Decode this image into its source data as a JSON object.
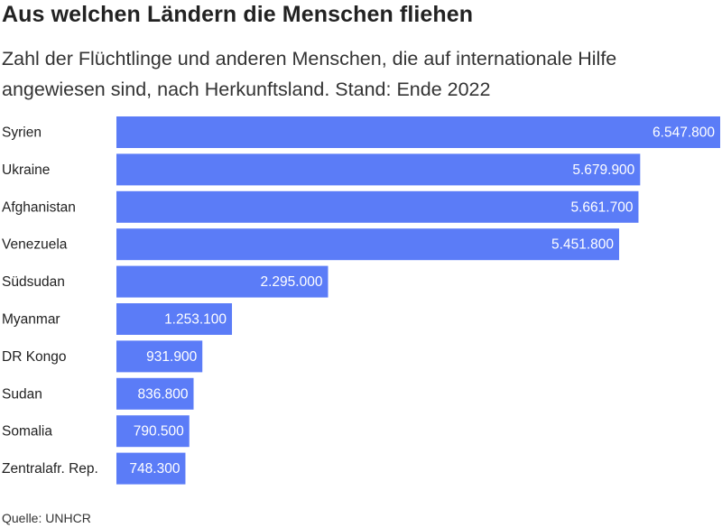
{
  "chart_data": {
    "type": "bar",
    "orientation": "horizontal",
    "title": "Aus welchen Ländern die Menschen fliehen",
    "subtitle": "Zahl der Flüchtlinge und anderen Menschen, die auf internationale Hilfe angewiesen sind, nach Herkunftsland. Stand: Ende 2022",
    "source": "Quelle: UNHCR",
    "categories": [
      "Syrien",
      "Ukraine",
      "Afghanistan",
      "Venezuela",
      "Südsudan",
      "Myanmar",
      "DR Kongo",
      "Sudan",
      "Somalia",
      "Zentralafr. Rep."
    ],
    "values": [
      6547800,
      5679900,
      5661700,
      5451800,
      2295000,
      1253100,
      931900,
      836800,
      790500,
      748300
    ],
    "value_labels": [
      "6.547.800",
      "5.679.900",
      "5.661.700",
      "5.451.800",
      "2.295.000",
      "1.253.100",
      "931.900",
      "836.800",
      "790.500",
      "748.300"
    ],
    "xlim": [
      0,
      6547800
    ],
    "bar_color": "#5b7cf7",
    "value_label_color": "#ffffff",
    "grid": false,
    "legend": "none"
  }
}
